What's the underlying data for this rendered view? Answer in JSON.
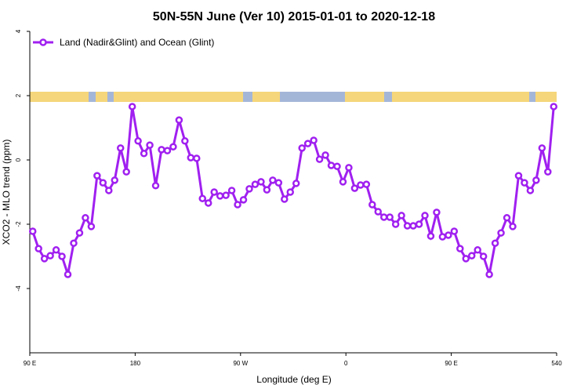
{
  "chart_data": {
    "type": "line",
    "title": "50N-55N June (Ver 10)   2015-01-01 to 2020-12-18",
    "x_label": "Longitude (deg E)",
    "y_label": "XCO2 - MLO trend (ppm)",
    "legend_position": "top-left",
    "xlim": [
      90,
      540
    ],
    "ylim": [
      -6,
      4
    ],
    "xticks": [
      {
        "value": 90,
        "label": "90 E"
      },
      180,
      {
        "value": 270,
        "label": "90 W"
      },
      {
        "value": 360,
        "label": "0"
      },
      {
        "value": 450,
        "label": "90 E"
      },
      540
    ],
    "yticks": [
      -4,
      -2,
      0,
      2,
      4
    ],
    "x": [
      92.5,
      97.5,
      102.5,
      107.5,
      112.5,
      117.5,
      122.5,
      127.5,
      132.5,
      137.5,
      142.5,
      147.5,
      152.5,
      157.5,
      162.5,
      167.5,
      172.5,
      177.5,
      182.5,
      187.5,
      192.5,
      197.5,
      202.5,
      207.5,
      212.5,
      217.5,
      222.5,
      227.5,
      232.5,
      237.5,
      242.5,
      247.5,
      252.5,
      257.5,
      262.5,
      267.5,
      272.5,
      277.5,
      282.5,
      287.5,
      292.5,
      297.5,
      302.5,
      307.5,
      312.5,
      317.5,
      322.5,
      327.5,
      332.5,
      337.5,
      342.5,
      347.5,
      352.5,
      357.5,
      362.5,
      367.5,
      372.5,
      377.5,
      382.5,
      387.5,
      392.5,
      397.5,
      402.5,
      407.5,
      412.5,
      417.5,
      422.5,
      427.5,
      432.5,
      437.5,
      442.5,
      447.5,
      452.5,
      457.5,
      462.5,
      467.5,
      472.5,
      477.5,
      482.5,
      487.5,
      492.5,
      497.5,
      502.5,
      507.5,
      512.5,
      517.5,
      522.5,
      527.5,
      532.5,
      537.5
    ],
    "series": [
      {
        "name": "Land (Nadir&Glint) and Ocean (Glint)",
        "color": "#a020f0",
        "values": [
          -2.22,
          -2.76,
          -3.07,
          -2.98,
          -2.8,
          -3.0,
          -3.56,
          -2.59,
          -2.27,
          -1.8,
          -2.07,
          -0.49,
          -0.71,
          -0.95,
          -0.63,
          0.37,
          -0.37,
          1.66,
          0.59,
          0.2,
          0.46,
          -0.8,
          0.32,
          0.29,
          0.41,
          1.24,
          0.59,
          0.07,
          0.05,
          -1.2,
          -1.34,
          -1.0,
          -1.12,
          -1.1,
          -0.95,
          -1.39,
          -1.24,
          -0.9,
          -0.76,
          -0.68,
          -0.93,
          -0.63,
          -0.71,
          -1.22,
          -1.0,
          -0.73,
          0.37,
          0.51,
          0.61,
          0.02,
          0.15,
          -0.17,
          -0.2,
          -0.68,
          -0.24,
          -0.88,
          -0.78,
          -0.76,
          -1.39,
          -1.61,
          -1.78,
          -1.78,
          -2.0,
          -1.73,
          -2.05,
          -2.05,
          -2.0,
          -1.73,
          -2.37,
          -1.63,
          -2.39,
          -2.34,
          -2.22,
          -2.76,
          -3.07,
          -2.98,
          -2.8,
          -3.0,
          -3.56,
          -2.59,
          -2.27,
          -1.8,
          -2.07,
          -0.49,
          -0.71,
          -0.95,
          -0.63,
          0.37,
          -0.37,
          1.66
        ]
      }
    ]
  }
}
